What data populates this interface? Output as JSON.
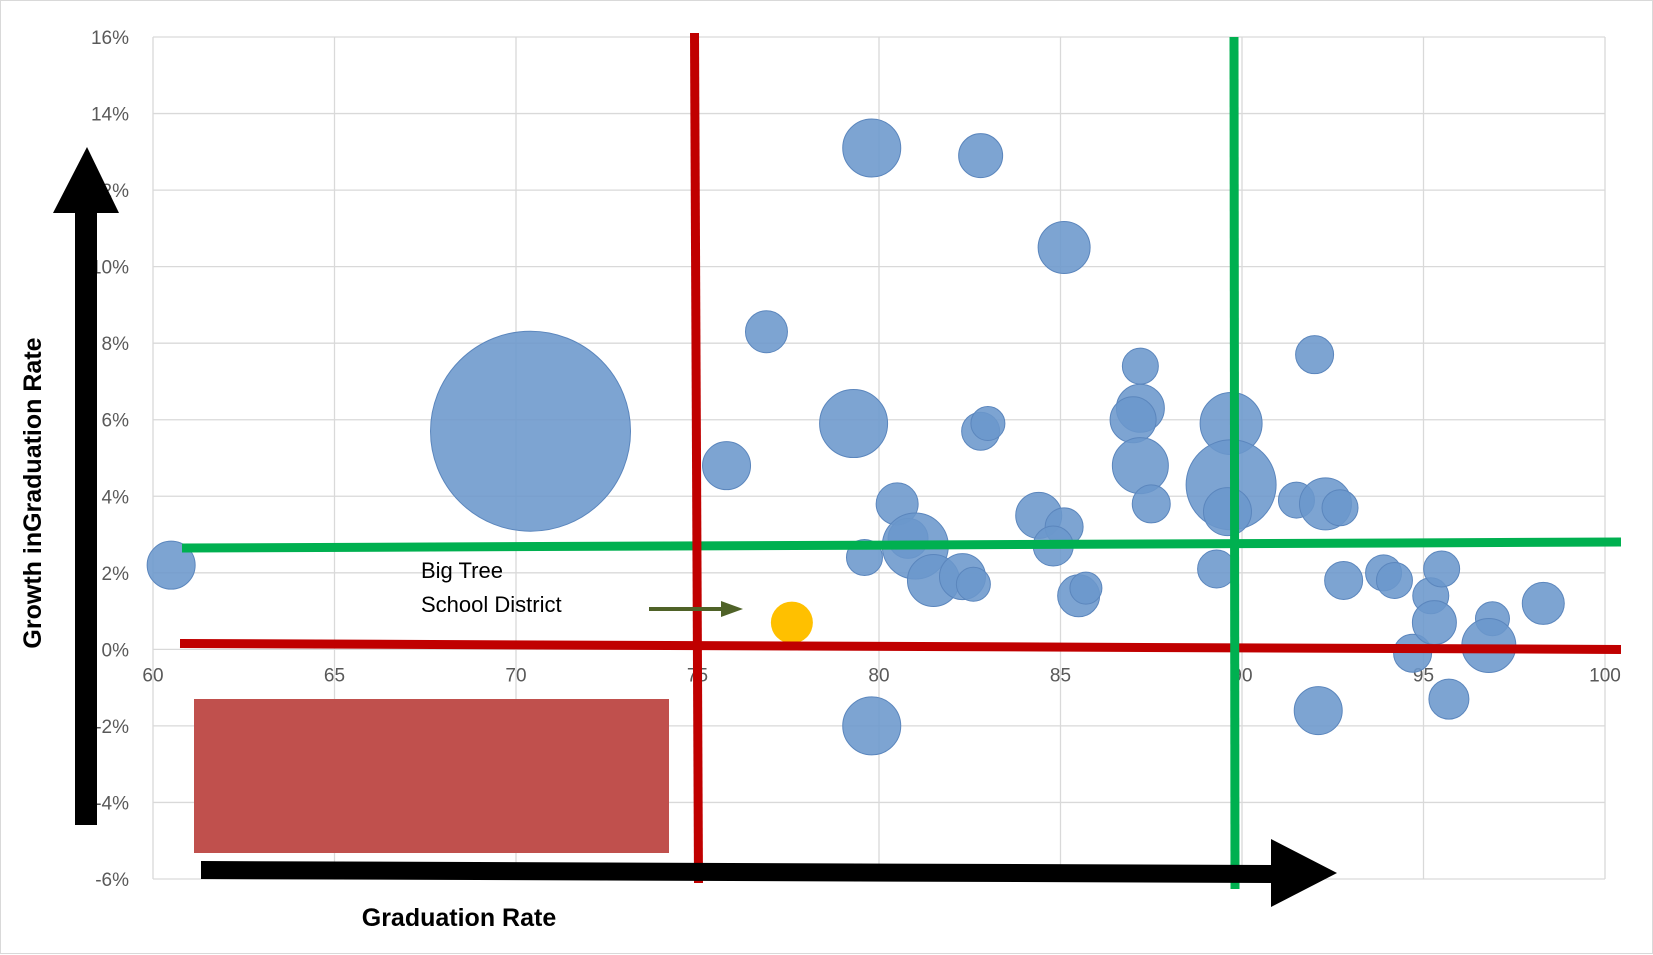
{
  "chart_data": {
    "type": "bubble",
    "title": "",
    "xlabel": "Graduation Rate",
    "ylabel": "Growth inGraduation Rate",
    "xlim": [
      60,
      100
    ],
    "ylim": [
      -6,
      16
    ],
    "x_ticks": [
      "60",
      "65",
      "70",
      "75",
      "80",
      "85",
      "90",
      "95",
      "100"
    ],
    "y_ticks": [
      "-6%",
      "-4%",
      "-2%",
      "0%",
      "2%",
      "4%",
      "6%",
      "8%",
      "10%",
      "12%",
      "14%",
      "16%"
    ],
    "grid": true,
    "bubble_color": "#6b97cc",
    "highlight_color": "#ffc000",
    "points": [
      {
        "x": 60.5,
        "y": 2.2,
        "r": 24
      },
      {
        "x": 70.4,
        "y": 5.7,
        "r": 100
      },
      {
        "x": 75.8,
        "y": 4.8,
        "r": 24
      },
      {
        "x": 76.9,
        "y": 8.3,
        "r": 21
      },
      {
        "x": 79.3,
        "y": 5.9,
        "r": 34
      },
      {
        "x": 79.8,
        "y": 13.1,
        "r": 29
      },
      {
        "x": 82.8,
        "y": 12.9,
        "r": 22
      },
      {
        "x": 79.6,
        "y": 2.4,
        "r": 18
      },
      {
        "x": 80.5,
        "y": 3.8,
        "r": 21
      },
      {
        "x": 80.8,
        "y": 2.9,
        "r": 20
      },
      {
        "x": 81.0,
        "y": 2.7,
        "r": 33
      },
      {
        "x": 81.5,
        "y": 1.8,
        "r": 26
      },
      {
        "x": 82.3,
        "y": 1.9,
        "r": 23
      },
      {
        "x": 82.6,
        "y": 1.7,
        "r": 17
      },
      {
        "x": 79.8,
        "y": -2.0,
        "r": 29
      },
      {
        "x": 82.8,
        "y": 5.7,
        "r": 19
      },
      {
        "x": 83.0,
        "y": 5.9,
        "r": 17
      },
      {
        "x": 85.1,
        "y": 10.5,
        "r": 26
      },
      {
        "x": 84.4,
        "y": 3.5,
        "r": 23
      },
      {
        "x": 85.1,
        "y": 3.2,
        "r": 19
      },
      {
        "x": 84.8,
        "y": 2.7,
        "r": 20
      },
      {
        "x": 85.5,
        "y": 1.4,
        "r": 21
      },
      {
        "x": 85.7,
        "y": 1.6,
        "r": 16
      },
      {
        "x": 87.2,
        "y": 7.4,
        "r": 18
      },
      {
        "x": 87.2,
        "y": 6.3,
        "r": 24
      },
      {
        "x": 87.0,
        "y": 6.0,
        "r": 23
      },
      {
        "x": 87.2,
        "y": 4.8,
        "r": 28
      },
      {
        "x": 87.5,
        "y": 3.8,
        "r": 19
      },
      {
        "x": 89.7,
        "y": 5.9,
        "r": 31
      },
      {
        "x": 89.7,
        "y": 4.3,
        "r": 45
      },
      {
        "x": 89.6,
        "y": 3.6,
        "r": 24
      },
      {
        "x": 89.3,
        "y": 2.1,
        "r": 19
      },
      {
        "x": 92.0,
        "y": 7.7,
        "r": 19
      },
      {
        "x": 91.5,
        "y": 3.9,
        "r": 18
      },
      {
        "x": 92.3,
        "y": 3.8,
        "r": 26
      },
      {
        "x": 92.7,
        "y": 3.7,
        "r": 18
      },
      {
        "x": 92.8,
        "y": 1.8,
        "r": 19
      },
      {
        "x": 92.1,
        "y": -1.6,
        "r": 24
      },
      {
        "x": 93.9,
        "y": 2.0,
        "r": 18
      },
      {
        "x": 94.2,
        "y": 1.8,
        "r": 18
      },
      {
        "x": 94.7,
        "y": -0.1,
        "r": 19
      },
      {
        "x": 95.2,
        "y": 1.4,
        "r": 18
      },
      {
        "x": 95.3,
        "y": 0.7,
        "r": 22
      },
      {
        "x": 95.5,
        "y": 2.1,
        "r": 18
      },
      {
        "x": 95.7,
        "y": -1.3,
        "r": 20
      },
      {
        "x": 96.9,
        "y": 0.8,
        "r": 17
      },
      {
        "x": 96.8,
        "y": 0.1,
        "r": 27
      },
      {
        "x": 98.3,
        "y": 1.2,
        "r": 21
      }
    ],
    "highlight": {
      "x": 77.6,
      "y": 0.7,
      "r": 21
    },
    "annotation": {
      "line1": "Big Tree",
      "line2": "School District"
    },
    "threshold_lines": {
      "red_vertical_x": 75,
      "green_vertical_x": 90,
      "green_horizontal_y": 2.7,
      "red_horizontal_y": 0.05
    },
    "line_colors": {
      "red": "#c00000",
      "green": "#00b050",
      "arrow": "#000000",
      "annotation_arrow": "#4f6228",
      "box": "#c0504d"
    }
  }
}
